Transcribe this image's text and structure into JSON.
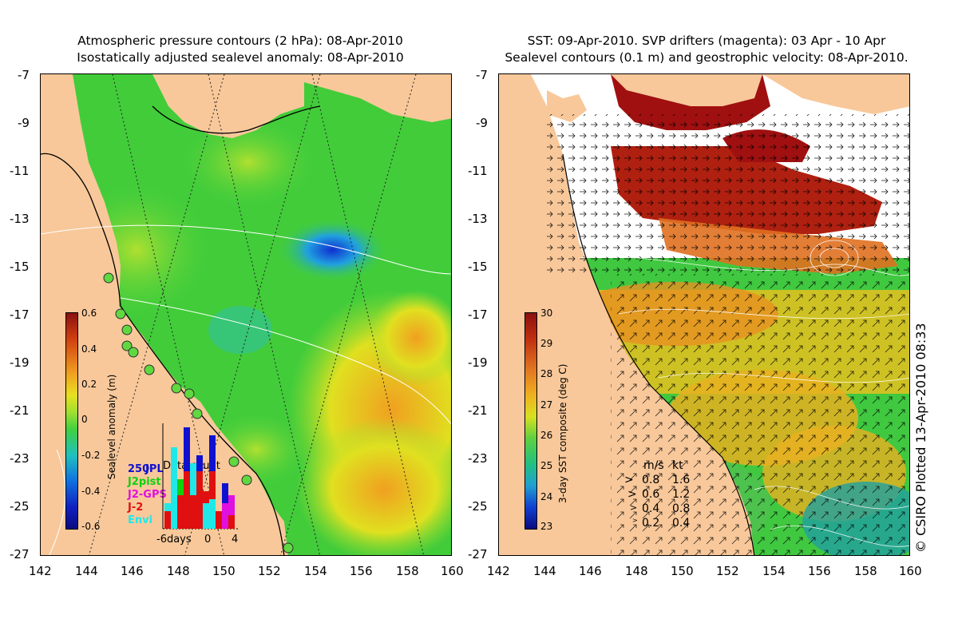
{
  "left_map": {
    "title_line1": "Atmospheric pressure contours (2 hPa): 08-Apr-2010",
    "title_line2": "Isostatically adjusted sealevel anomaly: 08-Apr-2010",
    "y_ticks": [
      "-7",
      "-9",
      "-11",
      "-13",
      "-15",
      "-17",
      "-19",
      "-21",
      "-23",
      "-25",
      "-27"
    ],
    "x_ticks": [
      "142",
      "144",
      "146",
      "148",
      "150",
      "152",
      "154",
      "156",
      "158",
      "160"
    ],
    "colorbar": {
      "label": "Sealevel anomaly (m)",
      "ticks": [
        "0.6",
        "0.4",
        "0.2",
        "0",
        "-0.2",
        "-0.4",
        "-0.6"
      ],
      "range": [
        -0.6,
        0.6
      ]
    },
    "data_count": {
      "title": "Data count",
      "scale_label": "250",
      "missions": [
        {
          "name": "JPL",
          "color": "#1010d0"
        },
        {
          "name": "J2pist",
          "color": "#10d010"
        },
        {
          "name": "J2-GPS",
          "color": "#e010e0"
        },
        {
          "name": "J-2",
          "color": "#e01010"
        },
        {
          "name": "Envi",
          "color": "#20e8e8"
        }
      ],
      "axis_labels": [
        "-6days",
        "0",
        "4"
      ]
    }
  },
  "right_map": {
    "title_line1": "SST: 09-Apr-2010. SVP drifters (magenta): 03 Apr - 10 Apr",
    "title_line2": "Sealevel contours (0.1 m) and geostrophic velocity: 08-Apr-2010.",
    "y_ticks": [
      "-7",
      "-9",
      "-11",
      "-13",
      "-15",
      "-17",
      "-19",
      "-21",
      "-23",
      "-25",
      "-27"
    ],
    "x_ticks": [
      "142",
      "144",
      "146",
      "148",
      "150",
      "152",
      "154",
      "156",
      "158",
      "160"
    ],
    "colorbar": {
      "label": "3-day SST composite (deg C)",
      "ticks": [
        "30",
        "29",
        "28",
        "27",
        "26",
        "25",
        "24",
        "23"
      ],
      "range": [
        23,
        30
      ]
    },
    "velocity_legend": {
      "header_ms": "m/s",
      "header_kt": "kt",
      "rows": [
        {
          "ms": "0.8",
          "kt": "1.6"
        },
        {
          "ms": "0.6",
          "kt": "1.2"
        },
        {
          "ms": "0.4",
          "kt": "0.8"
        },
        {
          "ms": "0.2",
          "kt": "0.4"
        }
      ]
    }
  },
  "credit": "© CSIRO Plotted 13-Apr-2010 08:33",
  "colors": {
    "land": "#f8c89a",
    "ssh_mid": "#40d040",
    "sst_warm": "#a01010"
  }
}
